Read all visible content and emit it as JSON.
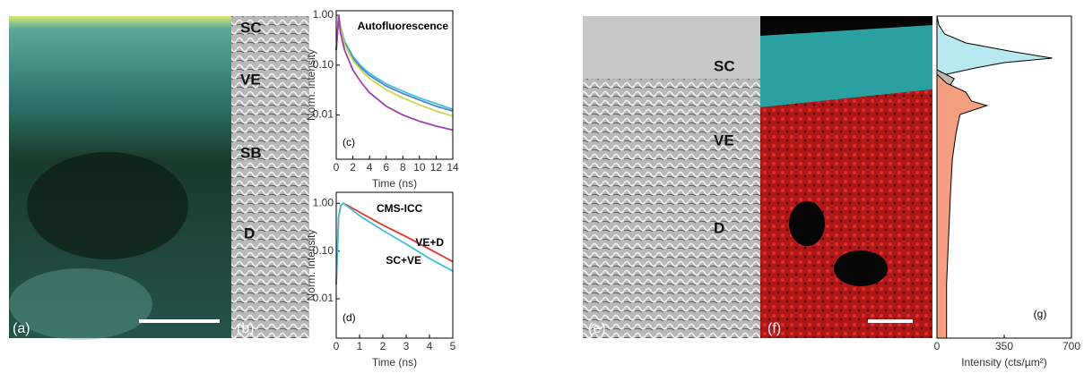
{
  "panels": {
    "a": "(a)",
    "b": "(b)",
    "e": "(e)",
    "f": "(f)"
  },
  "labels_b": [
    "SC",
    "VE",
    "SB",
    "D"
  ],
  "labels_e": [
    "SC",
    "VE",
    "D"
  ],
  "chart_data": [
    {
      "type": "line",
      "panel": "(c)",
      "title": "Autofluorescence",
      "xlabel": "Time (ns)",
      "ylabel": "Norm. intensity",
      "ylog": true,
      "xlim": [
        0,
        14
      ],
      "xticks": [
        0,
        2,
        4,
        6,
        8,
        10,
        12,
        14
      ],
      "ylim": [
        0.0013,
        1.23
      ],
      "yticks": [
        {
          "value": 1,
          "label": "1.00"
        },
        {
          "value": 0.1,
          "label": "0.10"
        },
        {
          "value": 0.01,
          "label": "0.01"
        }
      ],
      "x": [
        0,
        0.3,
        0.5,
        1,
        2,
        3,
        4,
        6,
        8,
        10,
        12,
        14
      ],
      "series": [
        {
          "color": "#3cc8d8",
          "values": [
            0.2,
            1.0,
            0.6,
            0.3,
            0.15,
            0.095,
            0.068,
            0.042,
            0.03,
            0.022,
            0.017,
            0.013
          ]
        },
        {
          "color": "#5a7fd0",
          "values": [
            0.2,
            1.0,
            0.57,
            0.28,
            0.14,
            0.088,
            0.062,
            0.038,
            0.027,
            0.02,
            0.015,
            0.012
          ]
        },
        {
          "color": "#c8d84a",
          "values": [
            0.2,
            1.0,
            0.55,
            0.26,
            0.125,
            0.078,
            0.054,
            0.032,
            0.022,
            0.016,
            0.012,
            0.0095
          ]
        },
        {
          "color": "#a040a8",
          "values": [
            0.2,
            1.0,
            0.45,
            0.2,
            0.08,
            0.045,
            0.028,
            0.015,
            0.01,
            0.0075,
            0.006,
            0.005
          ]
        }
      ]
    },
    {
      "type": "line",
      "panel": "(d)",
      "title": "CMS-ICC",
      "xlabel": "Time (ns)",
      "ylabel": "Norm. intensity",
      "ylog": true,
      "xlim": [
        0,
        5
      ],
      "xticks": [
        0,
        1,
        2,
        3,
        4,
        5
      ],
      "ylim": [
        0.0015,
        1.7
      ],
      "yticks": [
        {
          "value": 1,
          "label": "1.00"
        },
        {
          "value": 0.1,
          "label": "0.10"
        },
        {
          "value": 0.01,
          "label": "0.01"
        }
      ],
      "x": [
        0,
        0.1,
        0.2,
        0.3,
        0.5,
        1,
        2,
        3,
        4,
        5
      ],
      "series": [
        {
          "name": "VE+D",
          "color": "#e8302a",
          "values": [
            0.02,
            0.5,
            0.9,
            1.0,
            0.9,
            0.65,
            0.35,
            0.2,
            0.11,
            0.06
          ]
        },
        {
          "name": "SC+VE",
          "color": "#40c0d8",
          "values": [
            0.02,
            0.5,
            0.9,
            1.0,
            0.85,
            0.55,
            0.27,
            0.14,
            0.07,
            0.038
          ]
        }
      ]
    },
    {
      "type": "profile",
      "panel": "(g)",
      "xlabel": "Intensity (cts/µm²)",
      "xlim": [
        0,
        700
      ],
      "xticks": [
        0,
        350,
        700
      ],
      "ylim": [
        0,
        360
      ],
      "series": [
        {
          "color": "#b8e8f0",
          "y": [
            0,
            10,
            20,
            30,
            40,
            47,
            52,
            58,
            65,
            70
          ],
          "values": [
            0,
            10,
            40,
            150,
            400,
            600,
            350,
            200,
            50,
            0
          ]
        },
        {
          "color": "#c0b8b0",
          "y": [
            60,
            70,
            80,
            85
          ],
          "values": [
            0,
            90,
            60,
            0
          ]
        },
        {
          "color": "#f4a080",
          "y": [
            65,
            75,
            85,
            95,
            100,
            110,
            130,
            160,
            200,
            250,
            300,
            360
          ],
          "values": [
            0,
            50,
            150,
            180,
            260,
            120,
            100,
            80,
            70,
            60,
            50,
            50
          ]
        }
      ]
    }
  ]
}
